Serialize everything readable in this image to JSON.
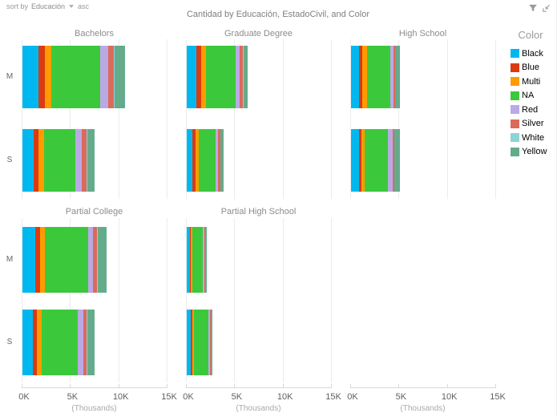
{
  "header": {
    "sort_by_label": "sort by",
    "sort_field": "Educación",
    "sort_direction": "asc"
  },
  "title": "Cantidad by Educación, EstadoCivil, and Color",
  "legend": {
    "title": "Color"
  },
  "chart_data": {
    "type": "bar",
    "subtype": "horizontal-stacked-small-multiples",
    "title": "Cantidad by Educación, EstadoCivil, and Color",
    "measure": "Cantidad",
    "facet_field": "Educación",
    "category_field": "EstadoCivil",
    "series_field": "Color",
    "categories": [
      "M",
      "S"
    ],
    "colors": [
      {
        "name": "Black",
        "hex": "#00b8ef"
      },
      {
        "name": "Blue",
        "hex": "#da3b12"
      },
      {
        "name": "Multi",
        "hex": "#fe9b00"
      },
      {
        "name": "NA",
        "hex": "#3bc93b"
      },
      {
        "name": "Red",
        "hex": "#bba9e5"
      },
      {
        "name": "Silver",
        "hex": "#dc6a5a"
      },
      {
        "name": "White",
        "hex": "#8ed4d7"
      },
      {
        "name": "Yellow",
        "hex": "#64ab8c"
      }
    ],
    "x_axis": {
      "tick_labels": [
        "0K",
        "5K",
        "10K",
        "15K"
      ],
      "tick_values": [
        0,
        5000,
        10000,
        15000
      ],
      "max": 15000,
      "unit_label": "(Thousands)",
      "grid": true
    },
    "panels": [
      {
        "title": "Bachelors",
        "row": 0,
        "col": 0,
        "bars": [
          {
            "category": "M",
            "values": [
              1650,
              660,
              660,
              5050,
              830,
              580,
              120,
              1040
            ],
            "total": 10590
          },
          {
            "category": "S",
            "values": [
              1160,
              500,
              580,
              3230,
              660,
              500,
              80,
              750
            ],
            "total": 7460
          }
        ]
      },
      {
        "title": "Graduate Degree",
        "row": 0,
        "col": 1,
        "bars": [
          {
            "category": "M",
            "values": [
              990,
              500,
              500,
              3060,
              410,
              330,
              80,
              410
            ],
            "total": 6280
          },
          {
            "category": "S",
            "values": [
              580,
              330,
              330,
              1740,
              250,
              250,
              40,
              330
            ],
            "total": 3850
          }
        ]
      },
      {
        "title": "High School",
        "row": 0,
        "col": 2,
        "bars": [
          {
            "category": "M",
            "values": [
              830,
              330,
              500,
              2400,
              330,
              170,
              40,
              500
            ],
            "total": 5100
          },
          {
            "category": "S",
            "values": [
              830,
              250,
              330,
              2400,
              500,
              170,
              40,
              500
            ],
            "total": 5020
          }
        ]
      },
      {
        "title": "Partial College",
        "row": 1,
        "col": 0,
        "bars": [
          {
            "category": "M",
            "values": [
              1330,
              500,
              500,
              4480,
              500,
              410,
              80,
              910
            ],
            "total": 8710
          },
          {
            "category": "S",
            "values": [
              1080,
              410,
              500,
              3730,
              580,
              330,
              80,
              750
            ],
            "total": 7460
          }
        ]
      },
      {
        "title": "Partial High School",
        "row": 1,
        "col": 1,
        "bars": [
          {
            "category": "M",
            "values": [
              330,
              120,
              120,
              1080,
              170,
              80,
              25,
              170
            ],
            "total": 2095
          },
          {
            "category": "S",
            "values": [
              410,
              170,
              170,
              1490,
              170,
              80,
              25,
              170
            ],
            "total": 2685
          }
        ]
      }
    ]
  }
}
